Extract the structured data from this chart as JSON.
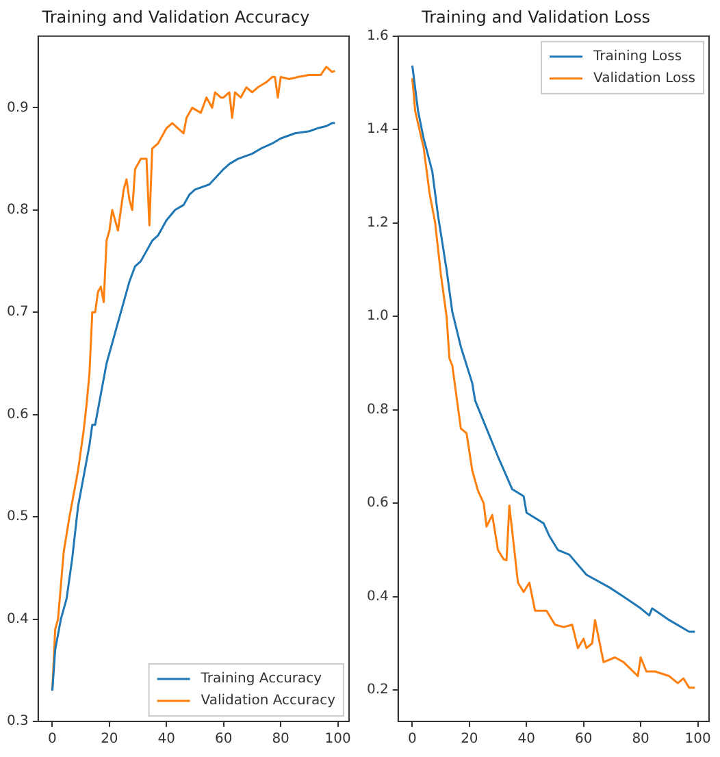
{
  "chart_data": [
    {
      "type": "line",
      "title": "Training and Validation Accuracy",
      "xlim": [
        -4.95,
        103.95
      ],
      "xticks": [
        0,
        20,
        40,
        60,
        80,
        100
      ],
      "ylim": [
        0.3,
        0.97
      ],
      "yticks": [
        0.3,
        0.4,
        0.5,
        0.6,
        0.7,
        0.8,
        0.9
      ],
      "grid": false,
      "legend": "bottom right",
      "series": [
        {
          "name": "Training Accuracy",
          "color": "#1f77b4",
          "x": [
            0,
            1,
            3,
            5,
            7,
            9,
            11,
            13,
            14,
            15,
            17,
            19,
            21,
            23,
            25,
            27,
            29,
            31,
            33,
            35,
            37,
            40,
            43,
            46,
            48,
            50,
            55,
            60,
            62,
            65,
            70,
            73,
            77,
            80,
            82,
            85,
            90,
            93,
            96,
            98,
            99
          ],
          "values": [
            0.33,
            0.37,
            0.4,
            0.42,
            0.46,
            0.51,
            0.54,
            0.57,
            0.59,
            0.59,
            0.62,
            0.65,
            0.67,
            0.69,
            0.71,
            0.73,
            0.745,
            0.75,
            0.76,
            0.77,
            0.775,
            0.79,
            0.8,
            0.805,
            0.815,
            0.82,
            0.825,
            0.84,
            0.845,
            0.85,
            0.855,
            0.86,
            0.865,
            0.87,
            0.872,
            0.875,
            0.877,
            0.88,
            0.882,
            0.885,
            0.885
          ]
        },
        {
          "name": "Validation Accuracy",
          "color": "#ff7f0e",
          "x": [
            0,
            1,
            2,
            4,
            6,
            9,
            11,
            12,
            13,
            14,
            15,
            16,
            17,
            18,
            19,
            20,
            21,
            22,
            23,
            25,
            26,
            27,
            28,
            29,
            31,
            33,
            34,
            35,
            37,
            40,
            42,
            44,
            46,
            47,
            49,
            52,
            54,
            56,
            57,
            59,
            60,
            62,
            63,
            64,
            66,
            68,
            70,
            72,
            75,
            77,
            78,
            79,
            80,
            83,
            86,
            90,
            94,
            96,
            98,
            99
          ],
          "values": [
            0.33,
            0.39,
            0.4,
            0.466,
            0.5,
            0.545,
            0.585,
            0.61,
            0.64,
            0.7,
            0.7,
            0.72,
            0.725,
            0.71,
            0.77,
            0.78,
            0.8,
            0.79,
            0.78,
            0.82,
            0.83,
            0.81,
            0.8,
            0.84,
            0.85,
            0.85,
            0.785,
            0.86,
            0.865,
            0.88,
            0.885,
            0.88,
            0.875,
            0.89,
            0.9,
            0.895,
            0.91,
            0.9,
            0.915,
            0.91,
            0.91,
            0.915,
            0.89,
            0.915,
            0.91,
            0.92,
            0.915,
            0.92,
            0.925,
            0.93,
            0.93,
            0.91,
            0.93,
            0.928,
            0.93,
            0.932,
            0.932,
            0.94,
            0.935,
            0.936
          ]
        }
      ]
    },
    {
      "type": "line",
      "title": "Training and Validation Loss",
      "xlim": [
        -4.95,
        103.95
      ],
      "xticks": [
        0,
        20,
        40,
        60,
        80,
        100
      ],
      "ylim": [
        0.133,
        1.6
      ],
      "yticks": [
        0.2,
        0.4,
        0.6,
        0.8,
        {
          "value": 1,
          "label": "1.0"
        },
        1.2,
        1.4,
        1.6
      ],
      "grid": false,
      "legend": "top right",
      "series": [
        {
          "name": "Training Loss",
          "color": "#1f77b4",
          "x": [
            0,
            2,
            4,
            7,
            9,
            12,
            14,
            17,
            21,
            22,
            26,
            30,
            35,
            39,
            40,
            46,
            48,
            51,
            55,
            61,
            69,
            74,
            80,
            83,
            84,
            90,
            97,
            99
          ],
          "values": [
            1.537,
            1.44,
            1.38,
            1.31,
            1.216,
            1.1,
            1.01,
            0.935,
            0.857,
            0.82,
            0.76,
            0.7,
            0.63,
            0.615,
            0.58,
            0.557,
            0.53,
            0.5,
            0.49,
            0.447,
            0.42,
            0.4,
            0.375,
            0.36,
            0.375,
            0.35,
            0.325,
            0.325
          ]
        },
        {
          "name": "Validation Loss",
          "color": "#ff7f0e",
          "x": [
            0,
            1,
            4,
            6,
            8,
            10,
            12,
            13,
            14,
            15,
            17,
            19,
            21,
            23,
            25,
            26,
            28,
            30,
            32,
            33,
            34,
            37,
            39,
            41,
            43,
            47,
            50,
            53,
            56,
            58,
            60,
            61,
            63,
            64,
            66,
            67,
            71,
            74,
            79,
            80,
            82,
            85,
            90,
            93,
            95,
            97,
            99
          ],
          "values": [
            1.51,
            1.44,
            1.36,
            1.265,
            1.2,
            1.09,
            1.0,
            0.91,
            0.895,
            0.85,
            0.76,
            0.75,
            0.67,
            0.627,
            0.6,
            0.55,
            0.575,
            0.5,
            0.48,
            0.478,
            0.595,
            0.43,
            0.41,
            0.43,
            0.37,
            0.37,
            0.34,
            0.335,
            0.34,
            0.29,
            0.31,
            0.29,
            0.3,
            0.35,
            0.29,
            0.26,
            0.27,
            0.26,
            0.23,
            0.27,
            0.24,
            0.24,
            0.23,
            0.215,
            0.225,
            0.205,
            0.205
          ]
        }
      ]
    }
  ]
}
